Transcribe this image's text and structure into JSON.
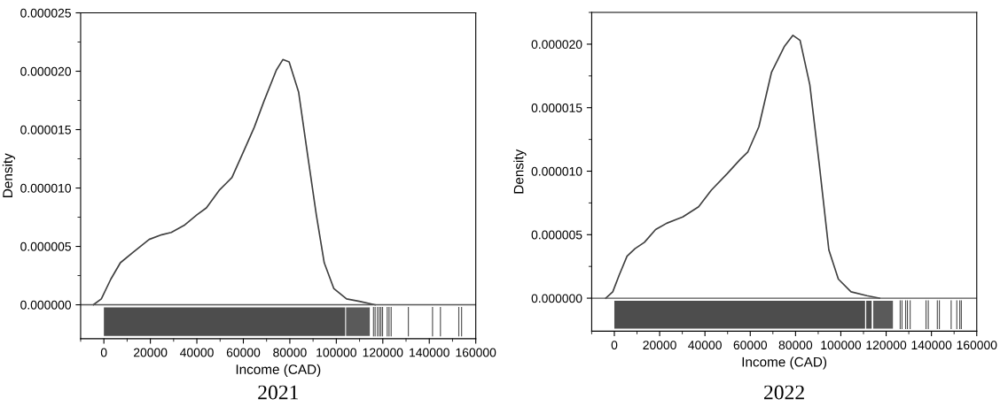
{
  "chart_data": [
    {
      "type": "line",
      "title": "2021",
      "xlabel": "Income (CAD)",
      "ylabel": "Density",
      "series": [
        {
          "color": "#404040",
          "x": [
            -4500,
            -1100,
            3000,
            7100,
            12600,
            19500,
            24900,
            29000,
            34500,
            40000,
            44100,
            49600,
            55100,
            60500,
            64700,
            68800,
            74200,
            77000,
            79700,
            83800,
            87900,
            91400,
            94800,
            98900,
            104400,
            109900,
            116700
          ],
          "values": [
            0,
            5e-07,
            2.2e-06,
            3.6e-06,
            4.5e-06,
            5.6e-06,
            6e-06,
            6.2e-06,
            6.8e-06,
            7.7e-06,
            8.3e-06,
            9.8e-06,
            1.09e-05,
            1.33e-05,
            1.52e-05,
            1.74e-05,
            2.01e-05,
            2.1e-05,
            2.08e-05,
            1.82e-05,
            1.25e-05,
            7.7e-06,
            3.6e-06,
            1.4e-06,
            5e-07,
            3e-07,
            0
          ]
        }
      ],
      "xlim": [
        -10000,
        160000
      ],
      "xticks": [
        0,
        20000,
        40000,
        60000,
        80000,
        100000,
        120000,
        140000,
        160000
      ],
      "ylim": [
        -2.9e-06,
        2.5e-05
      ],
      "yticks": [
        {
          "value": 0,
          "label": "0.000000"
        },
        {
          "value": 5e-06,
          "label": "0.000005"
        },
        {
          "value": 1e-05,
          "label": "0.000010"
        },
        {
          "value": 1.5e-05,
          "label": "0.000015"
        },
        {
          "value": 2e-05,
          "label": "0.000020"
        },
        {
          "value": 2.5e-05,
          "label": "0.000025"
        }
      ],
      "bands": [
        {
          "axis": "x",
          "from": 0,
          "to": 103800,
          "color": "#4d4d4d"
        },
        {
          "axis": "x",
          "from": 104200,
          "to": 114400,
          "color": "#5a5a5a"
        }
      ],
      "ref_lines": [
        {
          "axis": "y",
          "value": 0,
          "color": "#555555"
        },
        {
          "axis": "x",
          "value": 116000,
          "color": "#4d4d4d"
        },
        {
          "axis": "x",
          "value": 116700,
          "color": "#4d4d4d"
        },
        {
          "axis": "x",
          "value": 117700,
          "color": "#4d4d4d"
        },
        {
          "axis": "x",
          "value": 118500,
          "color": "#4d4d4d"
        },
        {
          "axis": "x",
          "value": 119200,
          "color": "#4d4d4d"
        },
        {
          "axis": "x",
          "value": 119900,
          "color": "#4d4d4d"
        },
        {
          "axis": "x",
          "value": 121900,
          "color": "#4d4d4d"
        },
        {
          "axis": "x",
          "value": 122700,
          "color": "#4d4d4d"
        },
        {
          "axis": "x",
          "value": 123600,
          "color": "#4d4d4d"
        },
        {
          "axis": "x",
          "value": 131000,
          "color": "#4d4d4d"
        },
        {
          "axis": "x",
          "value": 141400,
          "color": "#4d4d4d"
        },
        {
          "axis": "x",
          "value": 144800,
          "color": "#4d4d4d"
        },
        {
          "axis": "x",
          "value": 152700,
          "color": "#4d4d4d"
        },
        {
          "axis": "x",
          "value": 153900,
          "color": "#4d4d4d"
        }
      ]
    },
    {
      "type": "line",
      "title": "2022",
      "xlabel": "Income (CAD)",
      "ylabel": "Density",
      "series": [
        {
          "color": "#404040",
          "x": [
            -3800,
            -700,
            2100,
            5600,
            9100,
            13300,
            18200,
            23100,
            30200,
            37200,
            42800,
            49800,
            55400,
            58900,
            63800,
            69400,
            75000,
            78800,
            82000,
            86300,
            90500,
            94700,
            98900,
            104500,
            111500,
            117100
          ],
          "values": [
            0,
            5e-07,
            1.8e-06,
            3.3e-06,
            3.9e-06,
            4.4e-06,
            5.4e-06,
            5.9e-06,
            6.4e-06,
            7.2e-06,
            8.5e-06,
            9.8e-06,
            1.09e-05,
            1.15e-05,
            1.35e-05,
            1.78e-05,
            1.98e-05,
            2.07e-05,
            2.03e-05,
            1.68e-05,
            1.05e-05,
            3.8e-06,
            1.5e-06,
            5e-07,
            2e-07,
            0
          ]
        }
      ],
      "xlim": [
        -10000,
        160000
      ],
      "xticks": [
        0,
        20000,
        40000,
        60000,
        80000,
        100000,
        120000,
        140000,
        160000
      ],
      "ylim": [
        -2.6e-06,
        2.25e-05
      ],
      "yticks": [
        {
          "value": 0,
          "label": "0.000000"
        },
        {
          "value": 5e-06,
          "label": "0.000005"
        },
        {
          "value": 1e-05,
          "label": "0.000010"
        },
        {
          "value": 1.5e-05,
          "label": "0.000015"
        },
        {
          "value": 2e-05,
          "label": "0.000020"
        }
      ],
      "bands": [
        {
          "axis": "x",
          "from": 0,
          "to": 110700,
          "color": "#4d4d4d"
        },
        {
          "axis": "x",
          "from": 111200,
          "to": 113600,
          "color": "#4d4d4d"
        },
        {
          "axis": "x",
          "from": 114300,
          "to": 123000,
          "color": "#5a5a5a"
        }
      ],
      "ref_lines": [
        {
          "axis": "y",
          "value": 0,
          "color": "#555555"
        },
        {
          "axis": "x",
          "value": 126200,
          "color": "#4d4d4d"
        },
        {
          "axis": "x",
          "value": 127000,
          "color": "#4d4d4d"
        },
        {
          "axis": "x",
          "value": 128600,
          "color": "#4d4d4d"
        },
        {
          "axis": "x",
          "value": 129400,
          "color": "#4d4d4d"
        },
        {
          "axis": "x",
          "value": 130600,
          "color": "#4d4d4d"
        },
        {
          "axis": "x",
          "value": 137600,
          "color": "#4d4d4d"
        },
        {
          "axis": "x",
          "value": 138600,
          "color": "#4d4d4d"
        },
        {
          "axis": "x",
          "value": 142600,
          "color": "#4d4d4d"
        },
        {
          "axis": "x",
          "value": 143500,
          "color": "#4d4d4d"
        },
        {
          "axis": "x",
          "value": 148700,
          "color": "#4d4d4d"
        },
        {
          "axis": "x",
          "value": 151200,
          "color": "#4d4d4d"
        },
        {
          "axis": "x",
          "value": 152500,
          "color": "#4d4d4d"
        },
        {
          "axis": "x",
          "value": 153200,
          "color": "#4d4d4d"
        }
      ]
    }
  ]
}
